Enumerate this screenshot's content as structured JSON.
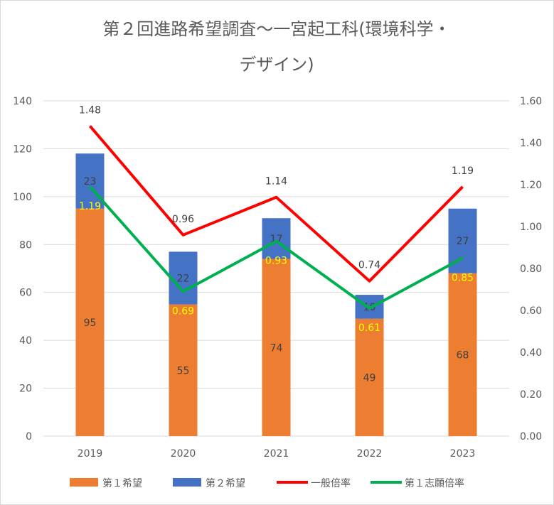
{
  "chart_data": {
    "type": "bar+line",
    "title_line1": "第２回進路希望調査～一宮起工科(環境科学・",
    "title_line2": "デザイン)",
    "categories": [
      "2019",
      "2020",
      "2021",
      "2022",
      "2023"
    ],
    "bar_series": [
      {
        "name": "第１希望",
        "color": "#ED7D31",
        "values": [
          95,
          55,
          74,
          49,
          68
        ]
      },
      {
        "name": "第２希望",
        "color": "#4472C4",
        "values": [
          23,
          22,
          17,
          10,
          27
        ]
      }
    ],
    "line_series": [
      {
        "name": "一般倍率",
        "color": "#FF0000",
        "values": [
          1.48,
          0.96,
          1.14,
          0.74,
          1.19
        ],
        "labels": [
          "1.48",
          "0.96",
          "1.14",
          "0.74",
          "1.19"
        ]
      },
      {
        "name": "第１志願倍率",
        "color": "#00B050",
        "values": [
          1.19,
          0.69,
          0.93,
          0.61,
          0.85
        ],
        "labels": [
          "1.19",
          "0.69",
          "0.93",
          "0.61",
          "0.85"
        ]
      }
    ],
    "y_left": {
      "min": 0,
      "max": 140,
      "step": 20,
      "ticks": [
        "0",
        "20",
        "40",
        "60",
        "80",
        "100",
        "120",
        "140"
      ]
    },
    "y_right": {
      "min": 0,
      "max": 1.6,
      "step": 0.2,
      "ticks": [
        "0.00",
        "0.20",
        "0.40",
        "0.60",
        "0.80",
        "1.00",
        "1.20",
        "1.40",
        "1.60"
      ]
    },
    "grid": true,
    "legend_position": "bottom"
  }
}
